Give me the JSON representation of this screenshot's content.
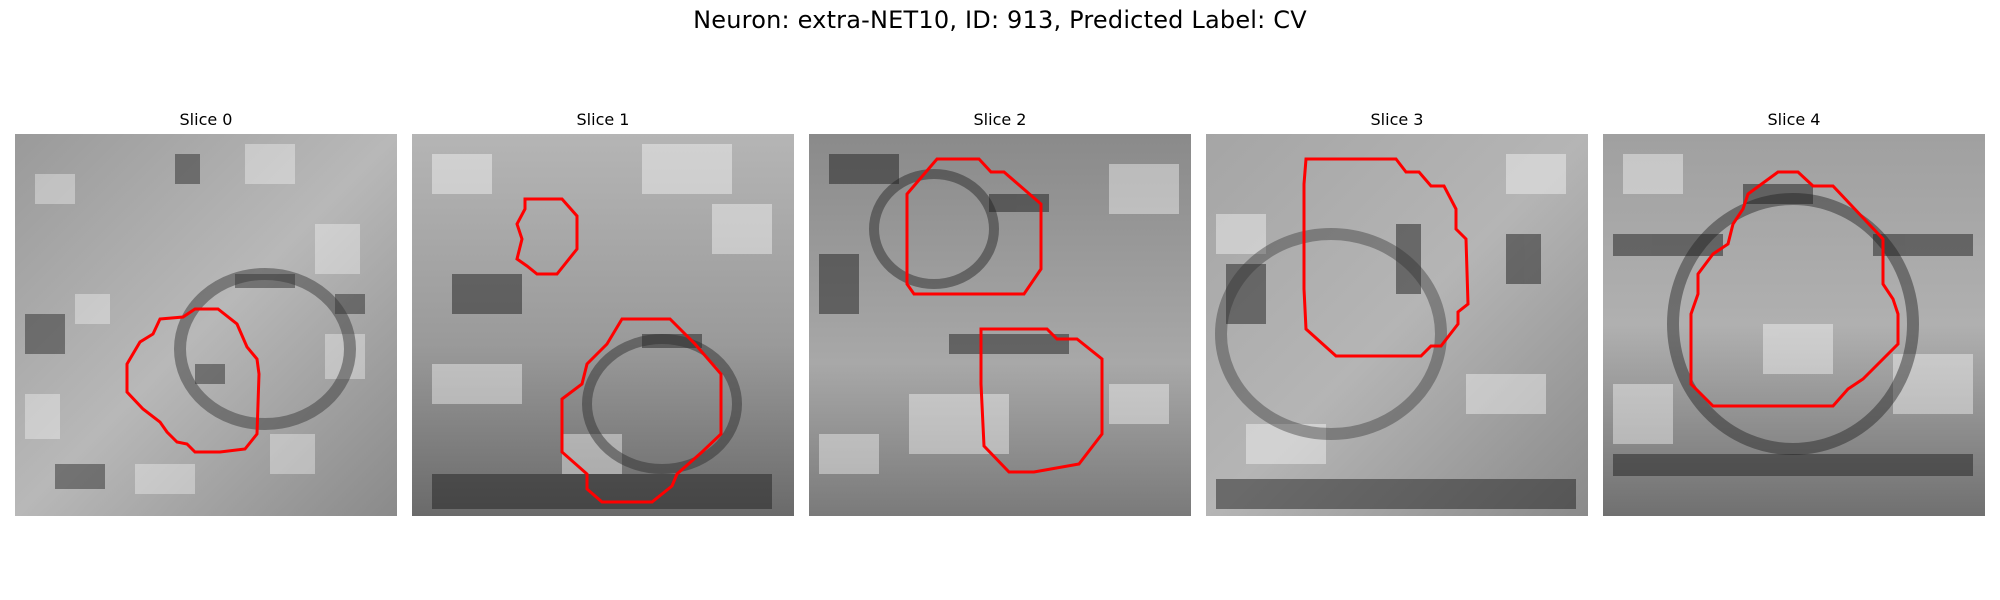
{
  "figure": {
    "title": "Neuron: extra-NET10, ID: 913, Predicted Label: CV"
  },
  "panels": [
    {
      "title": "Slice 0"
    },
    {
      "title": "Slice 1"
    },
    {
      "title": "Slice 2"
    },
    {
      "title": "Slice 3"
    },
    {
      "title": "Slice 4"
    }
  ],
  "colors": {
    "contour": "#ff0000",
    "background": "#ffffff"
  }
}
